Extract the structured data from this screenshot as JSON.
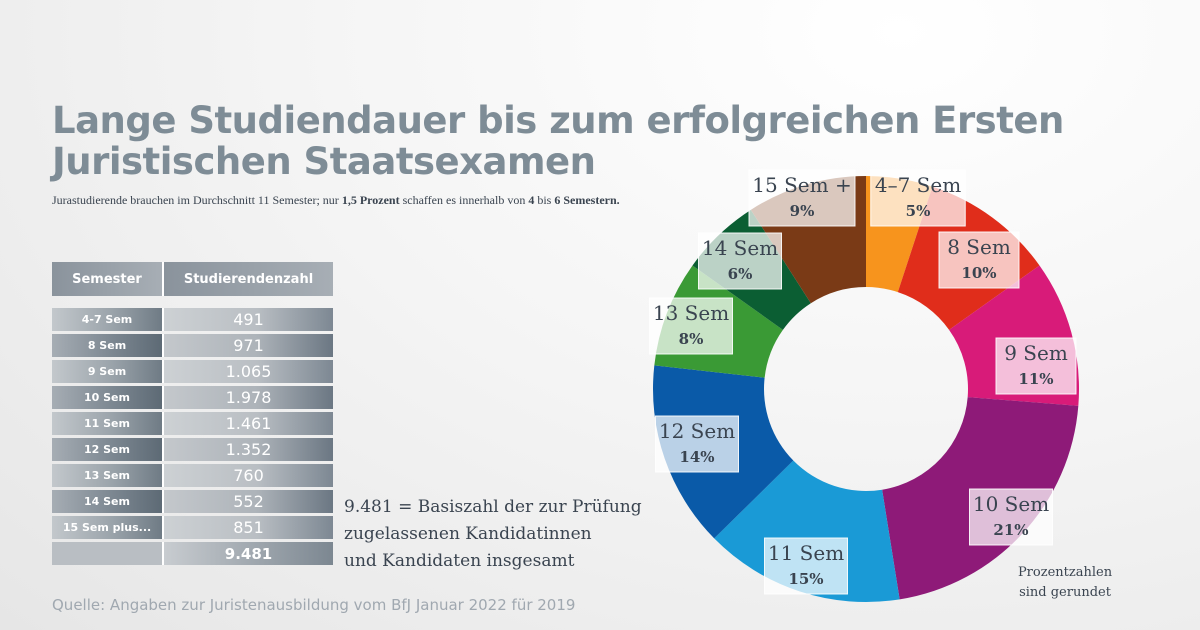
{
  "header": {
    "title_line1": "Lange Studiendauer bis zum erfolgreichen Ersten",
    "title_line2": "Juristischen Staatsexamen",
    "subtitle_a": "Jurastudierende brauchen im Durchschnitt 11 Semester; nur ",
    "subtitle_b": "1,5 Prozent",
    "subtitle_c": " schaffen es innerhalb von ",
    "subtitle_d": "4",
    "subtitle_e": " bis ",
    "subtitle_f": "6 Semestern."
  },
  "table": {
    "col1": "Semester",
    "col2": "Studierendenzahl",
    "rows": [
      {
        "semester": "4-7 Sem",
        "count": "491"
      },
      {
        "semester": "8 Sem",
        "count": "971"
      },
      {
        "semester": "9 Sem",
        "count": "1.065"
      },
      {
        "semester": "10 Sem",
        "count": "1.978"
      },
      {
        "semester": "11 Sem",
        "count": "1.461"
      },
      {
        "semester": "12 Sem",
        "count": "1.352"
      },
      {
        "semester": "13 Sem",
        "count": "760"
      },
      {
        "semester": "14 Sem",
        "count": "552"
      },
      {
        "semester": "15 Sem plus...",
        "count": "851"
      }
    ],
    "total": "9.481"
  },
  "basis": {
    "line1": "9.481 = Basiszahl der zur Prüfung",
    "line2": "zugelassenen Kandidatinnen",
    "line3": "und Kandidaten insgesamt"
  },
  "source": "Quelle: Angaben zur Juristenausbildung vom BfJ Januar 2022 für 2019",
  "note": {
    "line1": "Prozentzahlen",
    "line2": "sind gerundet"
  },
  "chart_data": {
    "type": "pie",
    "variant": "donut",
    "title": "Lange Studiendauer bis zum erfolgreichen Ersten Juristischen Staatsexamen",
    "categories": [
      "4–7 Sem",
      "8 Sem",
      "9 Sem",
      "10 Sem",
      "11 Sem",
      "12 Sem",
      "13 Sem",
      "14 Sem",
      "15 Sem +"
    ],
    "values": [
      5,
      10,
      11,
      21,
      15,
      14,
      8,
      6,
      9
    ],
    "labels": [
      "5%",
      "10%",
      "11%",
      "21%",
      "15%",
      "14%",
      "8%",
      "6%",
      "9%"
    ],
    "colors": [
      "#f7941d",
      "#e02d1b",
      "#d81b79",
      "#8e1a78",
      "#1a9ad6",
      "#0a5aa8",
      "#3a9a35",
      "#0b5e33",
      "#7a3a16"
    ]
  }
}
